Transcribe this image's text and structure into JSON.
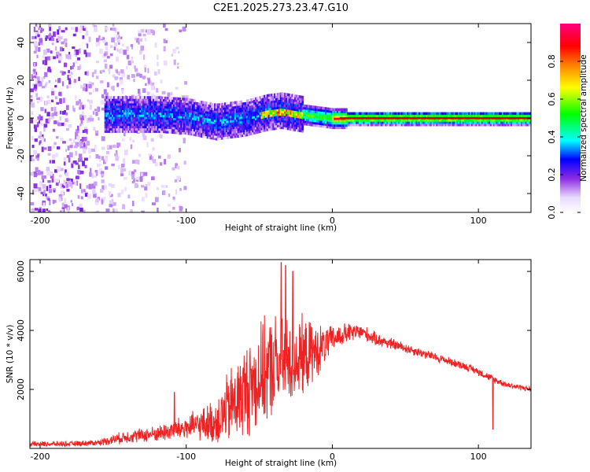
{
  "title": "C2E1.2025.273.23.47.G10",
  "colors": {
    "snr_line": "#ee2222",
    "axis": "#000000",
    "background": "#ffffff"
  },
  "chart_data": [
    {
      "type": "heatmap",
      "name": "spectrogram",
      "xlabel": "Height of straight line (km)",
      "ylabel": "Frequency (Hz)",
      "xlim": [
        -207,
        136
      ],
      "ylim": [
        -50,
        50
      ],
      "xticks": [
        -200,
        -100,
        0,
        100
      ],
      "yticks": [
        -40,
        -20,
        0,
        20,
        40
      ],
      "colorbar": {
        "label": "Normalized spectral amplitude",
        "range": [
          0,
          1
        ],
        "ticks": [
          "0.0",
          "0.2",
          "0.4",
          "0.6",
          "0.8"
        ],
        "tick_values": [
          0,
          0.2,
          0.4,
          0.6,
          0.8
        ],
        "colormap": [
          "#ffffff",
          "#8a2be2",
          "#0000ff",
          "#00ffff",
          "#00ff00",
          "#ffff00",
          "#ff8000",
          "#ff0000",
          "#ff0080"
        ]
      },
      "ridge": {
        "description_points_km_hz": [
          [
            -155,
            2
          ],
          [
            -120,
            2
          ],
          [
            -100,
            1
          ],
          [
            -80,
            -2
          ],
          [
            -60,
            0
          ],
          [
            -45,
            3
          ],
          [
            -35,
            4
          ],
          [
            -20,
            2
          ],
          [
            0,
            0
          ],
          [
            20,
            0
          ],
          [
            60,
            0
          ],
          [
            100,
            0
          ],
          [
            136,
            0
          ]
        ],
        "noise_region_km": [
          -207,
          -120
        ]
      }
    },
    {
      "type": "line",
      "name": "snr",
      "xlabel": "Height of straight line (km)",
      "ylabel": "SNR (10 * v/v)",
      "xlim": [
        -207,
        136
      ],
      "ylim": [
        0,
        6400
      ],
      "xticks": [
        -200,
        -100,
        0,
        100
      ],
      "yticks": [
        2000,
        4000,
        6000
      ],
      "series": [
        {
          "name": "SNR",
          "envelope_x": [
            -207,
            -180,
            -160,
            -150,
            -140,
            -130,
            -120,
            -110,
            -100,
            -90,
            -80,
            -70,
            -60,
            -50,
            -40,
            -30,
            -20,
            -10,
            0,
            10,
            20,
            30,
            40,
            50,
            60,
            70,
            80,
            90,
            100,
            110,
            120,
            136
          ],
          "envelope_mean": [
            150,
            150,
            200,
            300,
            400,
            450,
            500,
            600,
            700,
            800,
            900,
            1400,
            1900,
            2400,
            2800,
            3000,
            3100,
            3300,
            3700,
            3900,
            3950,
            3700,
            3550,
            3400,
            3250,
            3100,
            2950,
            2800,
            2600,
            2350,
            2150,
            2000
          ],
          "envelope_spread": [
            100,
            100,
            120,
            200,
            250,
            280,
            300,
            400,
            500,
            600,
            900,
            1500,
            1800,
            2000,
            2000,
            1800,
            1500,
            1000,
            500,
            400,
            300,
            250,
            220,
            200,
            180,
            170,
            160,
            150,
            150,
            140,
            120,
            110
          ],
          "spikes": [
            [
              -35,
              6300
            ],
            [
              -32,
              6200
            ],
            [
              -27,
              6000
            ],
            [
              -108,
              1900
            ],
            [
              110,
              1600
            ],
            [
              110,
              650
            ]
          ]
        }
      ]
    }
  ]
}
